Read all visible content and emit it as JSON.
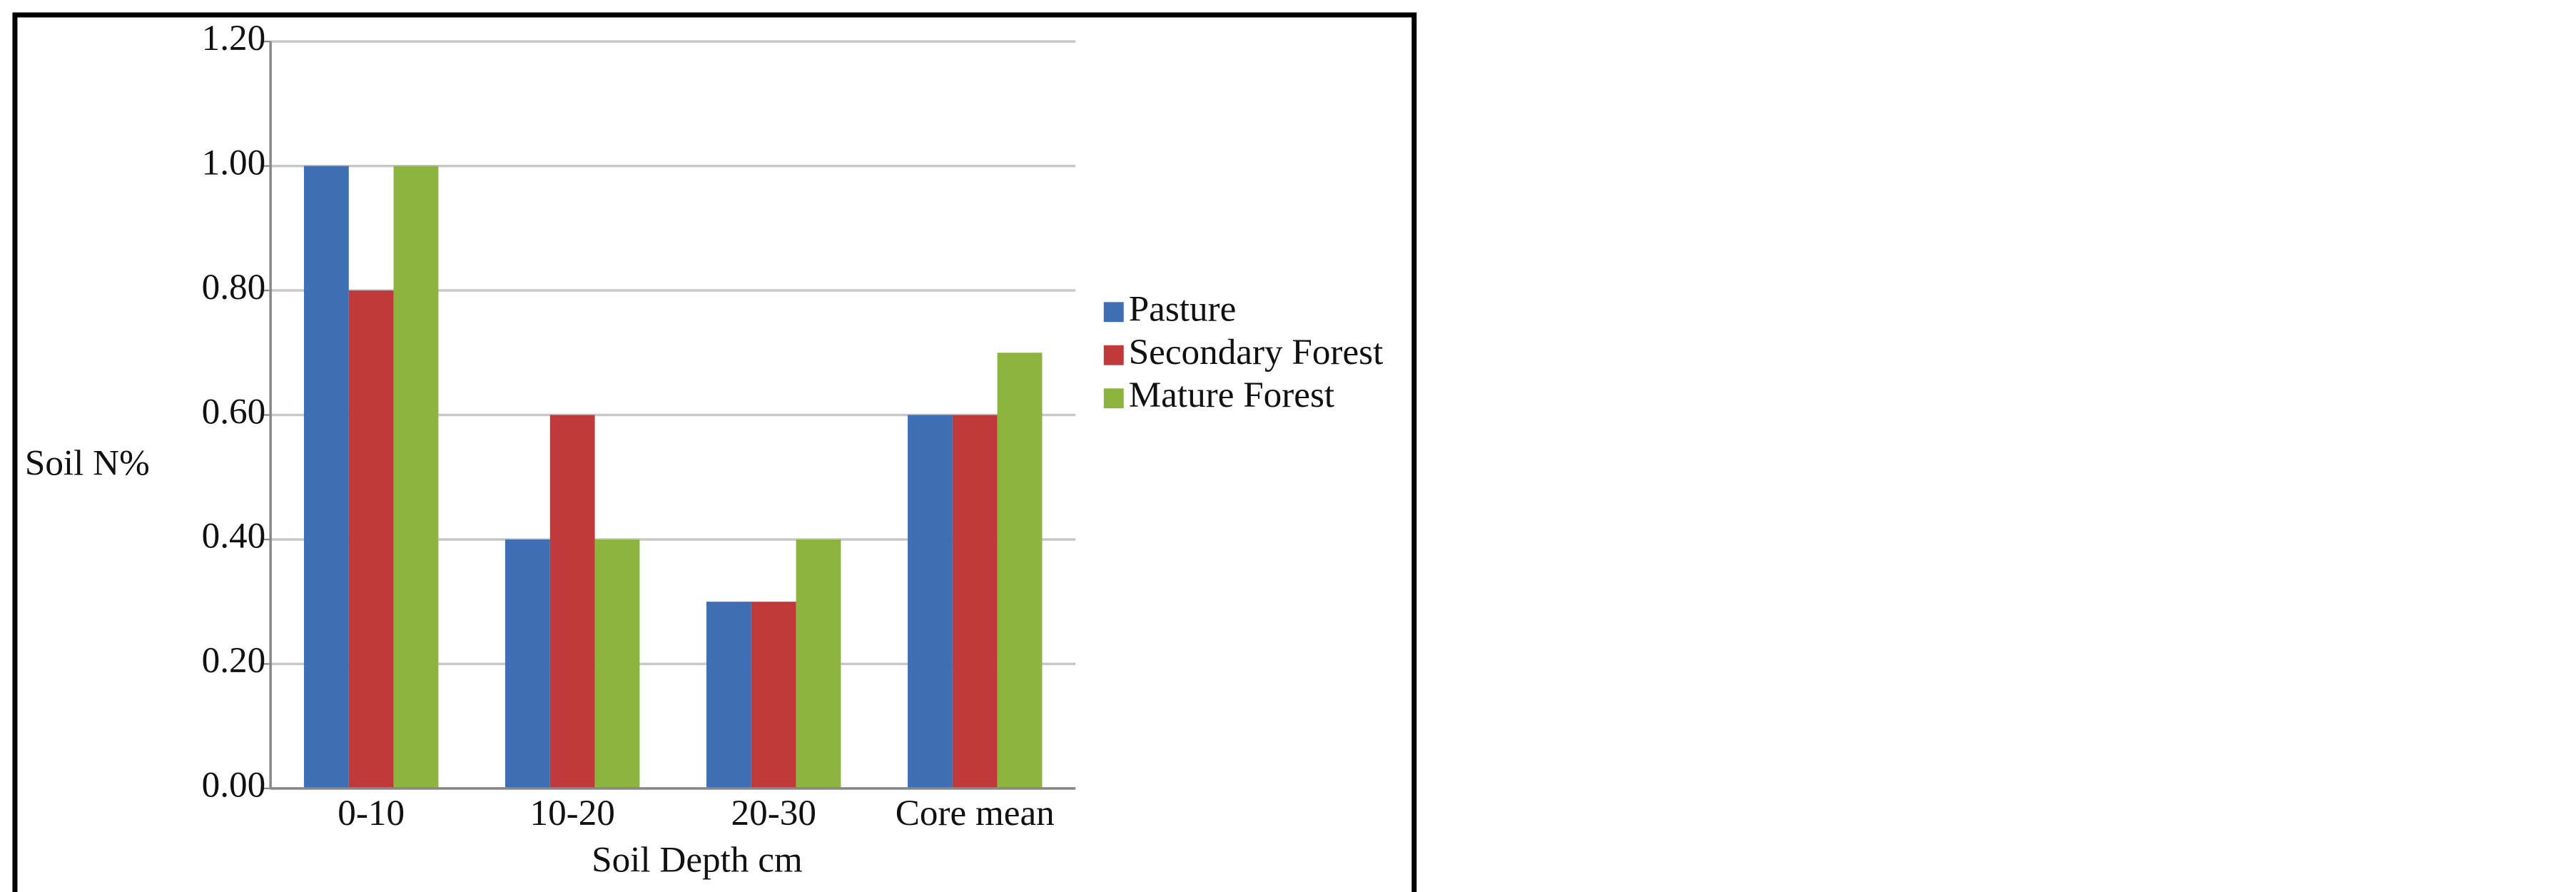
{
  "chart_data": {
    "type": "bar",
    "y_label": "Soil N%",
    "x_label": "Soil Depth cm",
    "categories": [
      "0-10",
      "10-20",
      "20-30",
      "Core mean"
    ],
    "series": [
      {
        "name": "Pasture",
        "color": "#3e6fb5",
        "values": [
          1.0,
          0.4,
          0.3,
          0.6
        ]
      },
      {
        "name": "Secondary Forest",
        "color": "#c0393b",
        "values": [
          0.8,
          0.6,
          0.3,
          0.6
        ]
      },
      {
        "name": "Mature Forest",
        "color": "#8db43e",
        "values": [
          1.0,
          0.4,
          0.4,
          0.7
        ]
      }
    ],
    "ylim": [
      0,
      1.2
    ],
    "yticks": [
      {
        "value": 0,
        "label": "0.00"
      },
      {
        "value": 0.2,
        "label": "0.20"
      },
      {
        "value": 0.4,
        "label": "0.40"
      },
      {
        "value": 0.6,
        "label": "0.60"
      },
      {
        "value": 0.8,
        "label": "0.80"
      },
      {
        "value": 1.0,
        "label": "1.00"
      },
      {
        "value": 1.2,
        "label": "1.20"
      }
    ],
    "grid": true,
    "legend": "right"
  }
}
